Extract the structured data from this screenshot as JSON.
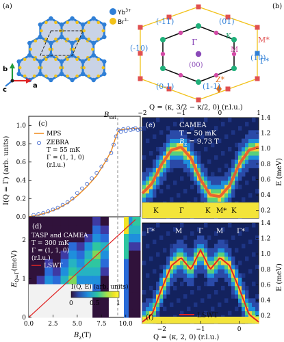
{
  "panels": {
    "a": {
      "label": "(a)",
      "legend": [
        {
          "text": "Yb",
          "sup": "3+",
          "color": "#2f7fd6"
        },
        {
          "text": "Br",
          "sup": "1-",
          "color": "#f2c21a"
        }
      ],
      "axes": {
        "b": "b",
        "c": "c",
        "a": "a"
      }
    },
    "b": {
      "label": "(b)",
      "points": {
        "gamma": "Γ",
        "k": "K",
        "m": "M",
        "m_star": "M*",
        "z_star": "Z*",
        "gamma_star": "Γ*",
        "center_index": "(00)"
      },
      "indices": [
        "(-11)",
        "(01)",
        "(-10)",
        "(10)",
        "(0-1)",
        "(1-1)"
      ]
    },
    "c": {
      "label": "(c)",
      "ylabel": "I(Q = Γ) (arb. units)",
      "annotation": "B",
      "annotation_sub": "sat",
      "legend_mps": "MPS",
      "legend_zebra": "ZEBRA",
      "temperature": "T = 55 mK",
      "gamma_def": "Γ = (1, 1, 0)",
      "units": "(r.l.u.)",
      "ticks_y": [
        "0.0",
        "0.2",
        "0.4",
        "0.6",
        "0.8",
        "1.0"
      ]
    },
    "d": {
      "label": "(d)",
      "ylabel": "E",
      "ylabel_sub": "Q=Γ",
      "ylabel_unit": "(meV)",
      "xlabel": "B",
      "xlabel_sub": "z",
      "xlabel_unit": "(T)",
      "legend_title": "TASP and CAMEA",
      "temperature": "T = 300 mK",
      "gamma_def": "Γ = (1, 1, 0)",
      "units": "(r.l.u.)",
      "lswt": "LSWT",
      "ticks_x": [
        "0.0",
        "2.5",
        "5.0",
        "7.5",
        "10.0"
      ],
      "ticks_y": [
        "0",
        "1",
        "2"
      ],
      "colorbar_label": "I(Q, E) (arb. units)",
      "colorbar_ticks": [
        "0",
        "0.5",
        "1"
      ]
    },
    "e": {
      "label": "(e)",
      "top_axis_label": "Q = (κ, 3/2 − κ/2, 0) (r.l.u.)",
      "top_ticks": [
        "−2",
        "−1",
        "0",
        "1"
      ],
      "title": "CAMEA",
      "temperature": "T = 50 mK",
      "field": "B",
      "field_sub": "z",
      "field_value": " = 9.73 T",
      "bottom_labels": [
        "K",
        "Γ",
        "K",
        "M*",
        "K"
      ],
      "ylabel": "E (meV)"
    },
    "f": {
      "label": "(f)",
      "top_labels": [
        "Γ*",
        "M",
        "Γ",
        "M",
        "Γ*"
      ],
      "lswt": "LSWT",
      "bottom_axis_label": "Q = (κ, 2, 0) (r.l.u.)",
      "bottom_ticks": [
        "−2",
        "−1",
        "0"
      ],
      "ylabel": "E (meV)"
    },
    "shared_e_ticks": [
      "0.2",
      "0.4",
      "0.6",
      "0.8",
      "1.0",
      "1.2",
      "1.4"
    ]
  },
  "chart_data": [
    {
      "type": "scatter",
      "panel": "c",
      "ylabel": "I(Q = Γ) (arb. units)",
      "ylim": [
        0,
        1.1
      ],
      "series": [
        {
          "name": "ZEBRA",
          "x": [
            0.5,
            1.0,
            1.5,
            2.0,
            2.5,
            3.0,
            3.5,
            4.0,
            4.5,
            5.0,
            5.5,
            6.0,
            6.5,
            7.0,
            7.5,
            8.0,
            8.5,
            8.75,
            9.0,
            9.25,
            9.5,
            9.75,
            10.0,
            10.25,
            10.5,
            10.75,
            11.0,
            11.25,
            11.5
          ],
          "y": [
            0.02,
            0.03,
            0.04,
            0.06,
            0.08,
            0.1,
            0.13,
            0.16,
            0.2,
            0.26,
            0.31,
            0.36,
            0.42,
            0.48,
            0.55,
            0.62,
            0.7,
            0.79,
            0.88,
            0.95,
            0.93,
            0.96,
            0.94,
            0.97,
            0.95,
            0.96,
            0.97,
            0.95,
            0.96
          ]
        },
        {
          "name": "MPS",
          "x": [
            0,
            1,
            2,
            3,
            4,
            5,
            6,
            7,
            8,
            8.5,
            9,
            9.3,
            10,
            11,
            11.5
          ],
          "y": [
            0.0,
            0.02,
            0.05,
            0.09,
            0.15,
            0.23,
            0.33,
            0.45,
            0.62,
            0.72,
            0.88,
            0.95,
            0.96,
            0.97,
            0.97
          ]
        }
      ]
    },
    {
      "type": "heatmap",
      "panel": "d",
      "xlabel": "Bz (T)",
      "ylabel": "E_Q=Γ (meV)",
      "xlim": [
        0,
        11.5
      ],
      "ylim": [
        0,
        2.6
      ],
      "series": [
        {
          "name": "LSWT",
          "x": [
            0,
            10.8
          ],
          "y": [
            0,
            2.5
          ]
        }
      ],
      "colorbar_range": [
        0,
        1
      ]
    },
    {
      "type": "heatmap",
      "panel": "e",
      "xlim": [
        -2,
        1
      ],
      "ylim": [
        0.1,
        1.4
      ],
      "dispersion": {
        "x": [
          -2,
          -1.75,
          -1.5,
          -1.25,
          -1,
          -0.75,
          -0.5,
          -0.25,
          0,
          0.25,
          0.5,
          0.75,
          1
        ],
        "y": [
          0.42,
          0.55,
          0.8,
          0.98,
          1.02,
          0.88,
          0.6,
          0.4,
          0.38,
          0.52,
          0.8,
          0.98,
          1.02
        ]
      }
    },
    {
      "type": "heatmap",
      "panel": "f",
      "xlim": [
        -2.5,
        0.5
      ],
      "ylim": [
        0.1,
        1.4
      ],
      "series": [
        {
          "name": "LSWT",
          "x": [
            -2.5,
            -2.25,
            -2,
            -1.75,
            -1.5,
            -1.25,
            -1,
            -0.75,
            -0.5,
            -0.25,
            0,
            0.25,
            0.5
          ],
          "y": [
            0.12,
            0.22,
            0.55,
            0.85,
            0.95,
            0.8,
            1.05,
            0.8,
            0.95,
            0.85,
            0.55,
            0.22,
            0.12
          ]
        }
      ]
    }
  ],
  "colors": {
    "blue_dot": "#2f7fd6",
    "yellow_dot": "#f2c21a",
    "orange_line": "#f08a1c",
    "red_line": "#e02424",
    "zebra_marker": "#4a6fd0",
    "dashed": "#888888"
  }
}
